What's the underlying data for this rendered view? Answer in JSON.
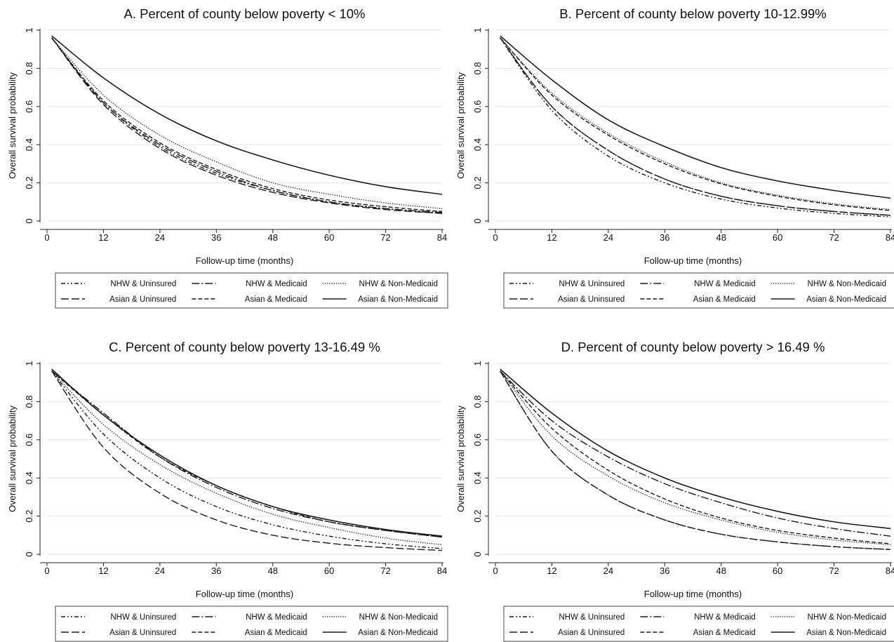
{
  "colors": {
    "line": "#1a1a1a",
    "grid": "#e6e6e6",
    "axis": "#222222",
    "legend_border": "#444444"
  },
  "chart_data": [
    {
      "type": "line",
      "title": "A. Percent of county below poverty < 10%",
      "xlabel": "Follow-up time (months)",
      "ylabel": "Overall survival probability",
      "xlim": [
        0,
        84
      ],
      "ylim": [
        0,
        1
      ],
      "xticks": [
        0,
        12,
        24,
        36,
        48,
        60,
        72,
        84
      ],
      "yticks": [
        0,
        0.2,
        0.4,
        0.6,
        0.8,
        1
      ],
      "ytick_labels": [
        "0",
        "0.2",
        "0.4",
        "0.6",
        "0.8",
        "1"
      ],
      "grid": true,
      "legend_position": "bottom",
      "x": [
        1,
        12,
        24,
        36,
        48,
        60,
        72,
        84
      ],
      "series": [
        {
          "name": "NHW & Uninsured",
          "dash": "dashdotdot",
          "values": [
            0.96,
            0.62,
            0.39,
            0.25,
            0.16,
            0.1,
            0.065,
            0.04
          ]
        },
        {
          "name": "NHW & Medicaid",
          "dash": "longdashdot",
          "values": [
            0.96,
            0.62,
            0.4,
            0.26,
            0.16,
            0.1,
            0.065,
            0.045
          ]
        },
        {
          "name": "NHW & Non-Medicaid",
          "dash": "dotted",
          "values": [
            0.96,
            0.66,
            0.45,
            0.31,
            0.2,
            0.14,
            0.095,
            0.065
          ]
        },
        {
          "name": "Asian & Uninsured",
          "dash": "longdash",
          "values": [
            0.96,
            0.61,
            0.38,
            0.24,
            0.15,
            0.095,
            0.06,
            0.04
          ]
        },
        {
          "name": "Asian & Medicaid",
          "dash": "dashed",
          "values": [
            0.96,
            0.63,
            0.41,
            0.27,
            0.17,
            0.11,
            0.075,
            0.05
          ]
        },
        {
          "name": "Asian & Non-Medicaid",
          "dash": "solid",
          "values": [
            0.97,
            0.75,
            0.56,
            0.42,
            0.32,
            0.24,
            0.18,
            0.14
          ]
        }
      ]
    },
    {
      "type": "line",
      "title": "B. Percent of county below poverty 10-12.99%",
      "xlabel": "Follow-up time (months)",
      "ylabel": "Overall survival probability",
      "xlim": [
        0,
        84
      ],
      "ylim": [
        0,
        1
      ],
      "xticks": [
        0,
        12,
        24,
        36,
        48,
        60,
        72,
        84
      ],
      "yticks": [
        0,
        0.2,
        0.4,
        0.6,
        0.8,
        1
      ],
      "ytick_labels": [
        "0",
        "0.2",
        "0.4",
        "0.6",
        "0.8",
        "1"
      ],
      "grid": true,
      "legend_position": "bottom",
      "x": [
        1,
        12,
        24,
        36,
        48,
        60,
        72,
        84
      ],
      "series": [
        {
          "name": "NHW & Uninsured",
          "dash": "dashdotdot",
          "values": [
            0.96,
            0.58,
            0.34,
            0.2,
            0.115,
            0.068,
            0.04,
            0.022
          ]
        },
        {
          "name": "NHW & Medicaid",
          "dash": "longdashdot",
          "values": [
            0.96,
            0.6,
            0.37,
            0.22,
            0.13,
            0.08,
            0.05,
            0.03
          ]
        },
        {
          "name": "NHW & Non-Medicaid",
          "dash": "dotted",
          "values": [
            0.96,
            0.67,
            0.46,
            0.31,
            0.2,
            0.135,
            0.09,
            0.06
          ]
        },
        {
          "name": "Asian & Uninsured",
          "dash": "longdash",
          "values": [
            0.96,
            0.6,
            0.37,
            0.22,
            0.13,
            0.08,
            0.05,
            0.03
          ]
        },
        {
          "name": "Asian & Medicaid",
          "dash": "dashed",
          "values": [
            0.96,
            0.66,
            0.45,
            0.3,
            0.195,
            0.13,
            0.085,
            0.055
          ]
        },
        {
          "name": "Asian & Non-Medicaid",
          "dash": "solid",
          "values": [
            0.97,
            0.74,
            0.53,
            0.39,
            0.28,
            0.21,
            0.16,
            0.12
          ]
        }
      ]
    },
    {
      "type": "line",
      "title": "C. Percent of county below poverty 13-16.49 %",
      "xlabel": "Follow-up time (months)",
      "ylabel": "Overall survival probability",
      "xlim": [
        0,
        84
      ],
      "ylim": [
        0,
        1
      ],
      "xticks": [
        0,
        12,
        24,
        36,
        48,
        60,
        72,
        84
      ],
      "yticks": [
        0,
        0.2,
        0.4,
        0.6,
        0.8,
        1
      ],
      "ytick_labels": [
        "0",
        "0.2",
        "0.4",
        "0.6",
        "0.8",
        "1"
      ],
      "grid": true,
      "legend_position": "bottom",
      "x": [
        1,
        12,
        24,
        36,
        48,
        60,
        72,
        84
      ],
      "series": [
        {
          "name": "NHW & Uninsured",
          "dash": "dashdotdot",
          "values": [
            0.96,
            0.63,
            0.4,
            0.25,
            0.155,
            0.095,
            0.055,
            0.03
          ]
        },
        {
          "name": "NHW & Medicaid",
          "dash": "longdashdot",
          "values": [
            0.96,
            0.74,
            0.51,
            0.35,
            0.24,
            0.17,
            0.125,
            0.09
          ]
        },
        {
          "name": "NHW & Non-Medicaid",
          "dash": "dotted",
          "values": [
            0.96,
            0.68,
            0.47,
            0.32,
            0.21,
            0.14,
            0.085,
            0.05
          ]
        },
        {
          "name": "Asian & Uninsured",
          "dash": "longdash",
          "values": [
            0.96,
            0.56,
            0.32,
            0.18,
            0.1,
            0.058,
            0.035,
            0.02
          ]
        },
        {
          "name": "Asian & Medicaid",
          "dash": "dashed",
          "values": [
            0.96,
            0.73,
            0.51,
            0.36,
            0.25,
            0.17,
            0.125,
            0.09
          ]
        },
        {
          "name": "Asian & Non-Medicaid",
          "dash": "solid",
          "values": [
            0.97,
            0.73,
            0.52,
            0.36,
            0.25,
            0.18,
            0.13,
            0.095
          ]
        }
      ]
    },
    {
      "type": "line",
      "title": "D. Percent of county below poverty > 16.49 %",
      "xlabel": "Follow-up time (months)",
      "ylabel": "Overall survival probability",
      "xlim": [
        0,
        84
      ],
      "ylim": [
        0,
        1
      ],
      "xticks": [
        0,
        12,
        24,
        36,
        48,
        60,
        72,
        84
      ],
      "yticks": [
        0,
        0.2,
        0.4,
        0.6,
        0.8,
        1
      ],
      "ytick_labels": [
        "0",
        "0.2",
        "0.4",
        "0.6",
        "0.8",
        "1"
      ],
      "grid": true,
      "legend_position": "bottom",
      "x": [
        1,
        12,
        24,
        36,
        48,
        60,
        72,
        84
      ],
      "series": [
        {
          "name": "NHW & Uninsured",
          "dash": "dashdotdot",
          "values": [
            0.96,
            0.54,
            0.31,
            0.18,
            0.105,
            0.065,
            0.04,
            0.025
          ]
        },
        {
          "name": "NHW & Medicaid",
          "dash": "longdashdot",
          "values": [
            0.96,
            0.7,
            0.51,
            0.37,
            0.27,
            0.19,
            0.135,
            0.095
          ]
        },
        {
          "name": "NHW & Non-Medicaid",
          "dash": "dotted",
          "values": [
            0.96,
            0.62,
            0.41,
            0.27,
            0.18,
            0.115,
            0.075,
            0.05
          ]
        },
        {
          "name": "Asian & Uninsured",
          "dash": "longdash",
          "values": [
            0.96,
            0.54,
            0.31,
            0.18,
            0.105,
            0.065,
            0.04,
            0.025
          ]
        },
        {
          "name": "Asian & Medicaid",
          "dash": "dashed",
          "values": [
            0.96,
            0.66,
            0.44,
            0.29,
            0.19,
            0.125,
            0.085,
            0.055
          ]
        },
        {
          "name": "Asian & Non-Medicaid",
          "dash": "solid",
          "values": [
            0.97,
            0.74,
            0.54,
            0.4,
            0.3,
            0.225,
            0.17,
            0.135
          ]
        }
      ]
    }
  ],
  "legend_order": [
    "NHW & Uninsured",
    "NHW & Medicaid",
    "NHW & Non-Medicaid",
    "Asian & Uninsured",
    "Asian & Medicaid",
    "Asian & Non-Medicaid"
  ]
}
